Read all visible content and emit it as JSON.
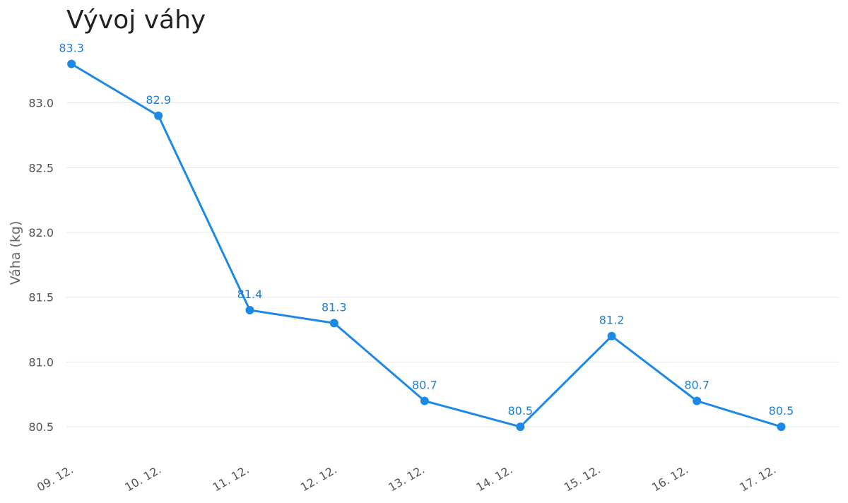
{
  "chart_data": {
    "type": "line",
    "title": "Vývoj váhy",
    "xlabel": "",
    "ylabel": "Váha (kg)",
    "categories": [
      "09. 12.",
      "10. 12.",
      "11. 12.",
      "12. 12.",
      "13. 12.",
      "14. 12.",
      "15. 12.",
      "16. 12.",
      "17. 12."
    ],
    "points": [
      {
        "x": "09. 12.",
        "x_offset": 0.17,
        "y": 83.3
      },
      {
        "x": "10. 12.",
        "x_offset": 0.16,
        "y": 82.9
      },
      {
        "x": "11. 12.",
        "x_offset": 0.2,
        "y": 81.4
      },
      {
        "x": "12. 12.",
        "x_offset": 0.16,
        "y": 81.3
      },
      {
        "x": "13. 12.",
        "x_offset": 0.19,
        "y": 80.7
      },
      {
        "x": "14. 12.",
        "x_offset": 0.28,
        "y": 80.5
      },
      {
        "x": "15. 12.",
        "x_offset": 0.32,
        "y": 81.2
      },
      {
        "x": "16. 12.",
        "x_offset": 0.29,
        "y": 80.7
      },
      {
        "x": "17. 12.",
        "x_offset": 0.25,
        "y": 80.5
      }
    ],
    "yticks": [
      80.5,
      81.0,
      81.5,
      82.0,
      82.5,
      83.0
    ],
    "ylim": [
      80.25,
      83.45
    ],
    "grid": true,
    "legend": "none",
    "colors": {
      "line": "#1e88e5",
      "label": "#1e7fd8",
      "grid": "#e6e6e6",
      "axis_text": "#555555",
      "title": "#222222"
    }
  }
}
